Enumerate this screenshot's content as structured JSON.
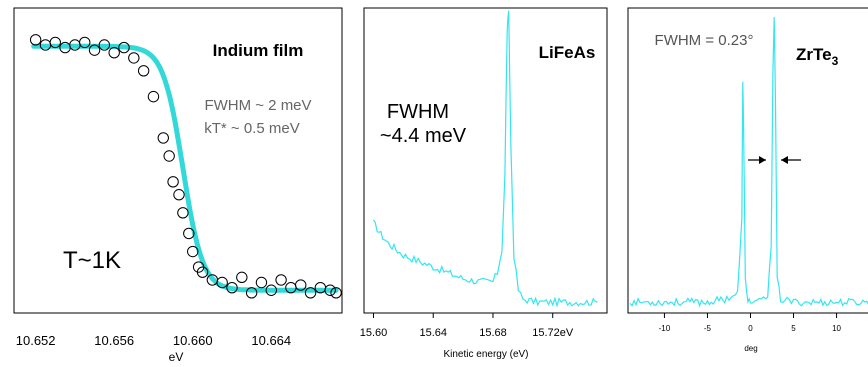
{
  "chart_data": [
    {
      "type": "scatter",
      "title": "Indium film",
      "xlabel": "eV",
      "ylabel": "",
      "xlim": [
        10.651,
        10.6675
      ],
      "ylim": [
        0,
        1.1
      ],
      "x_ticks": [
        "10.652",
        "10.656",
        "10.660",
        "10.664"
      ],
      "x_tick_values": [
        10.652,
        10.656,
        10.66,
        10.664
      ],
      "annotations": [
        "FWHM ~ 2 meV",
        "kT* ~ 0.5 meV",
        "T~1K"
      ],
      "fermi_edge": {
        "center": 10.6595,
        "width": 0.0005,
        "high": 0.975,
        "low": 0.03
      },
      "series": [
        {
          "marker": "open-circle",
          "x": [
            10.652,
            10.6525,
            10.653,
            10.6535,
            10.654,
            10.6545,
            10.655,
            10.6555,
            10.656,
            10.6565,
            10.657,
            10.6575,
            10.658,
            10.6585,
            10.6588,
            10.659,
            10.6593,
            10.6595,
            10.6598,
            10.66,
            10.6603,
            10.6605,
            10.661,
            10.6615,
            10.662,
            10.6625,
            10.663,
            10.6635,
            10.664,
            10.6645,
            10.665,
            10.6655,
            10.666,
            10.6665,
            10.667,
            10.6673
          ],
          "y": [
            1.0,
            0.98,
            0.99,
            0.97,
            0.98,
            0.99,
            0.96,
            0.98,
            0.95,
            0.97,
            0.93,
            0.88,
            0.78,
            0.62,
            0.55,
            0.45,
            0.4,
            0.33,
            0.25,
            0.18,
            0.12,
            0.1,
            0.07,
            0.06,
            0.04,
            0.08,
            0.02,
            0.06,
            0.03,
            0.07,
            0.04,
            0.05,
            0.02,
            0.04,
            0.03,
            0.02
          ]
        },
        {
          "marker": "line-fit",
          "color": "#33d9d9"
        }
      ]
    },
    {
      "type": "line",
      "title": "LiFeAs",
      "xlabel": "Kinetic energy (eV)",
      "ylabel": "",
      "xlim": [
        15.595,
        15.755
      ],
      "ylim": [
        0,
        1.0
      ],
      "x_ticks": [
        "15.60",
        "15.64",
        "15.68",
        "15.72eV"
      ],
      "x_tick_values": [
        15.6,
        15.64,
        15.68,
        15.72
      ],
      "annotations": [
        "FWHM",
        "~4.4 meV"
      ],
      "series": [
        {
          "color": "#33e6f0",
          "x": [
            15.6,
            15.605,
            15.61,
            15.615,
            15.62,
            15.63,
            15.64,
            15.65,
            15.66,
            15.67,
            15.68,
            15.683,
            15.686,
            15.688,
            15.6895,
            15.6905,
            15.692,
            15.694,
            15.697,
            15.7,
            15.71,
            15.72,
            15.73,
            15.74,
            15.75
          ],
          "y": [
            0.29,
            0.25,
            0.22,
            0.2,
            0.18,
            0.16,
            0.14,
            0.12,
            0.1,
            0.09,
            0.09,
            0.12,
            0.2,
            0.45,
            0.95,
            1.0,
            0.55,
            0.18,
            0.06,
            0.03,
            0.02,
            0.02,
            0.02,
            0.02,
            0.02
          ]
        }
      ]
    },
    {
      "type": "line",
      "title": "ZrTe3",
      "xlabel": "deg",
      "ylabel": "",
      "xlim": [
        -14,
        14
      ],
      "ylim": [
        0,
        1.0
      ],
      "x_ticks": [
        "-10",
        "-5",
        "0",
        "5",
        "10"
      ],
      "x_tick_values": [
        -10,
        -5,
        0,
        5,
        10
      ],
      "annotations": [
        "FWHM = 0.23°"
      ],
      "series": [
        {
          "color": "#33e6f0",
          "x": [
            -14,
            -10,
            -5,
            -3,
            -1.5,
            -1.0,
            -0.9,
            -0.8,
            -0.6,
            -0.3,
            0,
            1,
            2,
            2.4,
            2.6,
            2.75,
            2.9,
            3.1,
            3.5,
            5,
            10,
            14
          ],
          "y": [
            0.02,
            0.02,
            0.02,
            0.03,
            0.05,
            0.3,
            0.78,
            0.6,
            0.1,
            0.03,
            0.02,
            0.02,
            0.04,
            0.2,
            0.8,
            1.0,
            0.7,
            0.1,
            0.03,
            0.02,
            0.02,
            0.02
          ]
        }
      ]
    }
  ],
  "colors": {
    "fit": "#33d9d9",
    "spectrum": "#33e6f0",
    "frame": "#000000"
  }
}
